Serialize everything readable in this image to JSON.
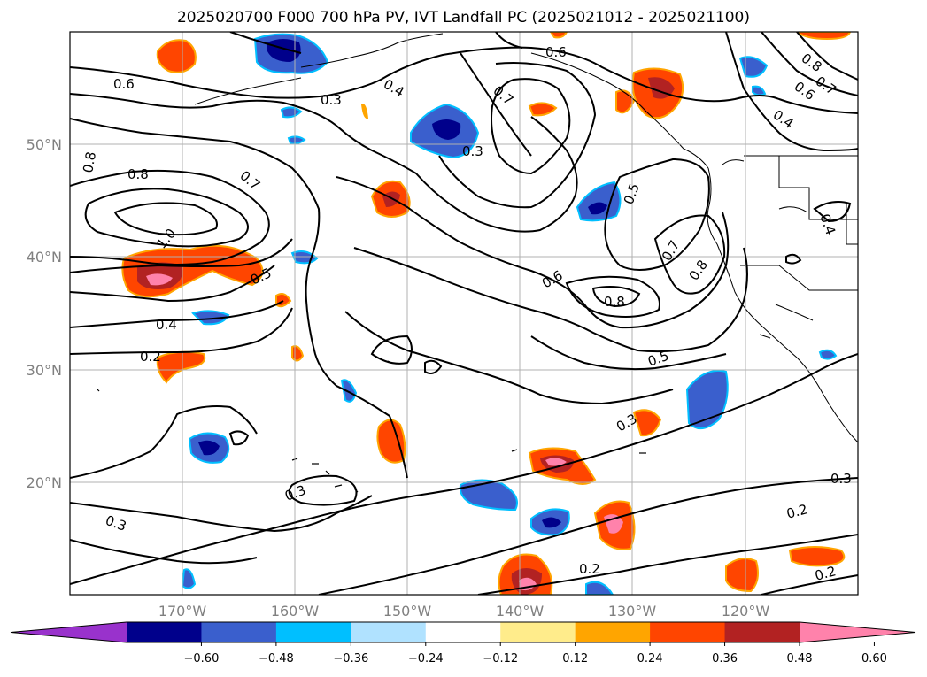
{
  "title": "2025020700 F000 700 hPa PV, IVT Landfall PC (2025021012 - 2025021100)",
  "lat_labels": [
    "50°N",
    "40°N",
    "30°N",
    "20°N"
  ],
  "lon_labels": [
    "170°W",
    "160°W",
    "150°W",
    "140°W",
    "130°W",
    "120°W"
  ],
  "colorbar": {
    "ticks": [
      "−0.60",
      "−0.48",
      "−0.36",
      "−0.24",
      "−0.12",
      "0.12",
      "0.24",
      "0.36",
      "0.48",
      "0.60"
    ],
    "colors": [
      "#9932cc",
      "#00008b",
      "#3a5fcd",
      "#00bfff",
      "#b0e2ff",
      "#ffffff",
      "#ffec8b",
      "#ffa500",
      "#ff4500",
      "#b22222",
      "#ff82ab"
    ],
    "extend": "both"
  },
  "contour_labels": [
    "0.6",
    "0.3",
    "0.4",
    "0.6",
    "0.7",
    "0.8",
    "0.6",
    "0.7",
    "0.4",
    "0.8",
    "0.8",
    "0.7",
    "0.3",
    "0.5",
    "1.0",
    "0.5",
    "0.4",
    "0.2",
    "0.7",
    "0.8",
    "0.6",
    "0.8",
    "0.5",
    "0.3",
    "0.3",
    "0.3",
    "0.3",
    "0.2",
    "0.2",
    "0.2",
    "0.4"
  ],
  "colors": {
    "contour": "#000000",
    "gridline": "#b0b0b0",
    "coast": "#000000",
    "axis_label": "#808080"
  }
}
